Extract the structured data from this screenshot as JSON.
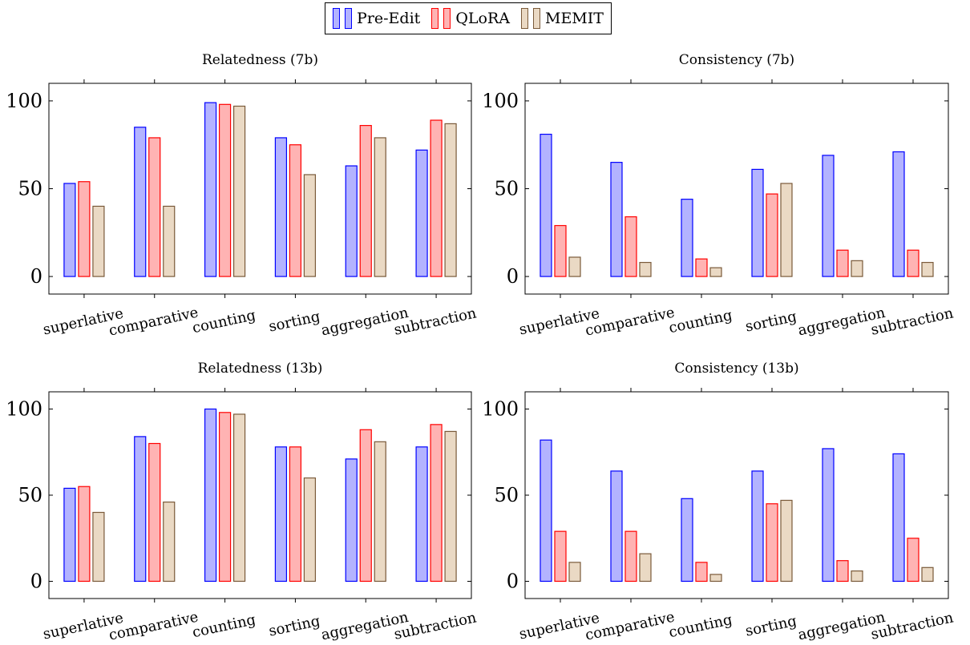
{
  "legend": {
    "items": [
      {
        "label": "Pre-Edit",
        "fill": "#b3b3ff",
        "stroke": "#0000ff"
      },
      {
        "label": "QLoRA",
        "fill": "#ffb3b3",
        "stroke": "#ff0000"
      },
      {
        "label": "MEMIT",
        "fill": "#ead9c4",
        "stroke": "#7a5a3a"
      }
    ]
  },
  "chart_data": [
    {
      "type": "bar",
      "title": "Relatedness (7b)",
      "categories": [
        "superlative",
        "comparative",
        "counting",
        "sorting",
        "aggregation",
        "subtraction"
      ],
      "series": [
        {
          "name": "Pre-Edit",
          "values": [
            53,
            85,
            99,
            79,
            63,
            72
          ]
        },
        {
          "name": "QLoRA",
          "values": [
            54,
            79,
            98,
            75,
            86,
            89
          ]
        },
        {
          "name": "MEMIT",
          "values": [
            40,
            40,
            97,
            58,
            79,
            87
          ]
        }
      ],
      "ylim": [
        -10,
        110
      ],
      "yticks": [
        0,
        50,
        100
      ]
    },
    {
      "type": "bar",
      "title": "Consistency (7b)",
      "categories": [
        "superlative",
        "comparative",
        "counting",
        "sorting",
        "aggregation",
        "subtraction"
      ],
      "series": [
        {
          "name": "Pre-Edit",
          "values": [
            81,
            65,
            44,
            61,
            69,
            71
          ]
        },
        {
          "name": "QLoRA",
          "values": [
            29,
            34,
            10,
            47,
            15,
            15
          ]
        },
        {
          "name": "MEMIT",
          "values": [
            11,
            8,
            5,
            53,
            9,
            8
          ]
        }
      ],
      "ylim": [
        -10,
        110
      ],
      "yticks": [
        0,
        50,
        100
      ]
    },
    {
      "type": "bar",
      "title": "Relatedness (13b)",
      "categories": [
        "superlative",
        "comparative",
        "counting",
        "sorting",
        "aggregation",
        "subtraction"
      ],
      "series": [
        {
          "name": "Pre-Edit",
          "values": [
            54,
            84,
            100,
            78,
            71,
            78
          ]
        },
        {
          "name": "QLoRA",
          "values": [
            55,
            80,
            98,
            78,
            88,
            91
          ]
        },
        {
          "name": "MEMIT",
          "values": [
            40,
            46,
            97,
            60,
            81,
            87
          ]
        }
      ],
      "ylim": [
        -10,
        110
      ],
      "yticks": [
        0,
        50,
        100
      ]
    },
    {
      "type": "bar",
      "title": "Consistency (13b)",
      "categories": [
        "superlative",
        "comparative",
        "counting",
        "sorting",
        "aggregation",
        "subtraction"
      ],
      "series": [
        {
          "name": "Pre-Edit",
          "values": [
            82,
            64,
            48,
            64,
            77,
            74
          ]
        },
        {
          "name": "QLoRA",
          "values": [
            29,
            29,
            11,
            45,
            12,
            25
          ]
        },
        {
          "name": "MEMIT",
          "values": [
            11,
            16,
            4,
            47,
            6,
            8
          ]
        }
      ],
      "ylim": [
        -10,
        110
      ],
      "yticks": [
        0,
        50,
        100
      ]
    }
  ]
}
